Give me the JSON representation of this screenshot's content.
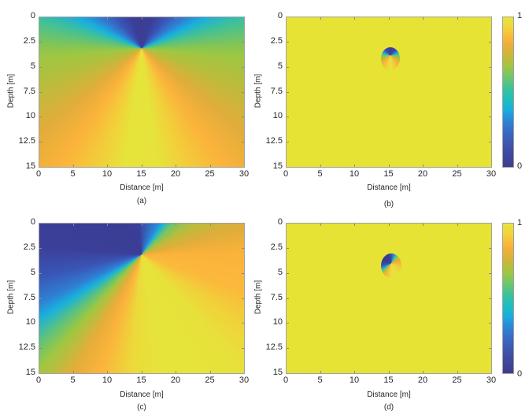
{
  "figure": {
    "panels": [
      {
        "id": "a",
        "caption": "(a)",
        "xlabel": "Distance [m]",
        "ylabel": "Depth [m]"
      },
      {
        "id": "b",
        "caption": "(b)",
        "xlabel": "Distance [m]",
        "ylabel": "Depth [m]"
      },
      {
        "id": "c",
        "caption": "(c)",
        "xlabel": "Distance [m]",
        "ylabel": "Depth [m]"
      },
      {
        "id": "d",
        "caption": "(d)",
        "xlabel": "Distance [m]",
        "ylabel": "Depth [m]"
      }
    ],
    "xticks": [
      "0",
      "5",
      "10",
      "15",
      "20",
      "25",
      "30"
    ],
    "yticks": [
      "0",
      "2.5",
      "5",
      "7.5",
      "10",
      "12.5",
      "15"
    ],
    "colorbar": {
      "max_label": "1",
      "min_label": "0"
    }
  },
  "chart_data": [
    {
      "type": "heatmap",
      "panel": "(a)",
      "title": "",
      "xlabel": "Distance [m]",
      "ylabel": "Depth [m]",
      "xlim": [
        0,
        30
      ],
      "ylim": [
        15,
        0
      ],
      "xticks": [
        0,
        5,
        10,
        15,
        20,
        25,
        30
      ],
      "yticks": [
        0,
        2.5,
        5,
        7.5,
        10,
        12.5,
        15
      ],
      "source_point": [
        15,
        4
      ],
      "description": "Angular field radiating from (15,4): low values (blue) directly above the source, cyan/green toward horizontal, orange at oblique downward angles, high values (yellow) directly below.",
      "value_range": [
        0,
        1
      ]
    },
    {
      "type": "heatmap",
      "panel": "(b)",
      "title": "",
      "xlabel": "Distance [m]",
      "ylabel": "Depth [m]",
      "xlim": [
        0,
        30
      ],
      "ylim": [
        15,
        0
      ],
      "xticks": [
        0,
        5,
        10,
        15,
        20,
        25,
        30
      ],
      "yticks": [
        0,
        2.5,
        5,
        7.5,
        10,
        12.5,
        15
      ],
      "background_value": 1,
      "ellipse": {
        "center": [
          15,
          4.2
        ],
        "x_range": [
          13.8,
          16.5
        ],
        "y_range": [
          3.0,
          5.4
        ]
      },
      "description": "Uniform value 1 except a small elliptical region around (15,4) showing the angular pattern of (a).",
      "colorbar": {
        "min": 0,
        "max": 1,
        "ticks": [
          "0",
          "1"
        ]
      }
    },
    {
      "type": "heatmap",
      "panel": "(c)",
      "title": "",
      "xlabel": "Distance [m]",
      "ylabel": "Depth [m]",
      "xlim": [
        0,
        30
      ],
      "ylim": [
        15,
        0
      ],
      "xticks": [
        0,
        5,
        10,
        15,
        20,
        25,
        30
      ],
      "yticks": [
        0,
        2.5,
        5,
        7.5,
        10,
        12.5,
        15
      ],
      "source_point": [
        15,
        4
      ],
      "description": "Rotated angular field radiating from (15,4): low (blue) in the upper-left sector, cyan boundary toward (18,0) and toward lower-left (0,11), orange to the right, yellow lower-right.",
      "value_range": [
        0,
        1
      ]
    },
    {
      "type": "heatmap",
      "panel": "(d)",
      "title": "",
      "xlabel": "Distance [m]",
      "ylabel": "Depth [m]",
      "xlim": [
        0,
        30
      ],
      "ylim": [
        15,
        0
      ],
      "xticks": [
        0,
        5,
        10,
        15,
        20,
        25,
        30
      ],
      "yticks": [
        0,
        2.5,
        5,
        7.5,
        10,
        12.5,
        15
      ],
      "background_value": 1,
      "ellipse": {
        "center": [
          15,
          4.2
        ],
        "x_range": [
          13.8,
          16.5
        ],
        "y_range": [
          3.0,
          5.4
        ]
      },
      "description": "Uniform value 1 except a small elliptical region around (15,4) showing the rotated angular pattern of (c).",
      "colorbar": {
        "min": 0,
        "max": 1,
        "ticks": [
          "0",
          "1"
        ]
      }
    }
  ]
}
